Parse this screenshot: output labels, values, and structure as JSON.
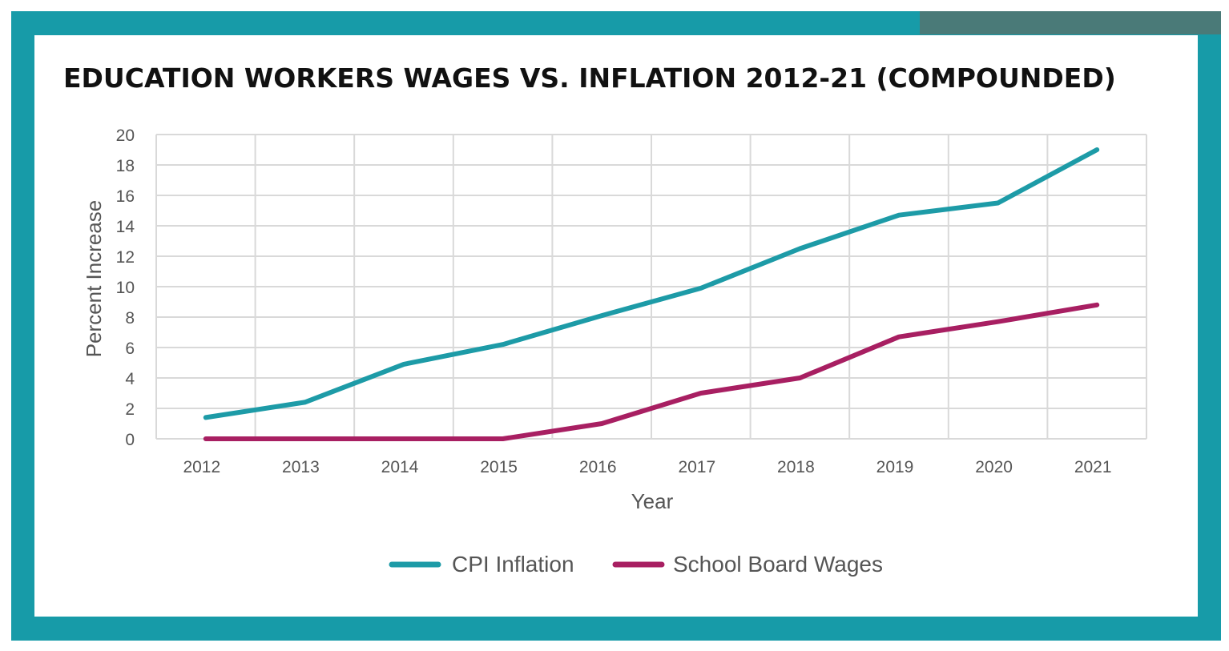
{
  "title": "EDUCATION WORKERS WAGES VS. INFLATION 2012-21 (COMPOUNDED)",
  "colors": {
    "frame": "#179ba8",
    "accent": "#4a7a78",
    "cpi": "#1d9ba7",
    "wages": "#a81f62",
    "grid": "#d9d9d9"
  },
  "chart_data": {
    "type": "line",
    "title": "EDUCATION WORKERS WAGES VS. INFLATION 2012-21 (COMPOUNDED)",
    "xlabel": "Year",
    "ylabel": "Percent Increase",
    "categories": [
      "2012",
      "2013",
      "2014",
      "2015",
      "2016",
      "2017",
      "2018",
      "2019",
      "2020",
      "2021"
    ],
    "y_ticks": [
      "0",
      "2",
      "4",
      "6",
      "8",
      "10",
      "12",
      "14",
      "16",
      "18",
      "20"
    ],
    "ylim": [
      0,
      20
    ],
    "grid": true,
    "legend_position": "bottom",
    "series": [
      {
        "name": "CPI Inflation",
        "color": "#1d9ba7",
        "values": [
          1.4,
          2.4,
          4.9,
          6.2,
          8.1,
          9.9,
          12.5,
          14.7,
          15.5,
          19.0
        ]
      },
      {
        "name": "School Board Wages",
        "color": "#a81f62",
        "values": [
          0,
          0,
          0,
          0,
          1.0,
          3.0,
          4.0,
          6.7,
          7.7,
          8.8
        ]
      }
    ]
  }
}
